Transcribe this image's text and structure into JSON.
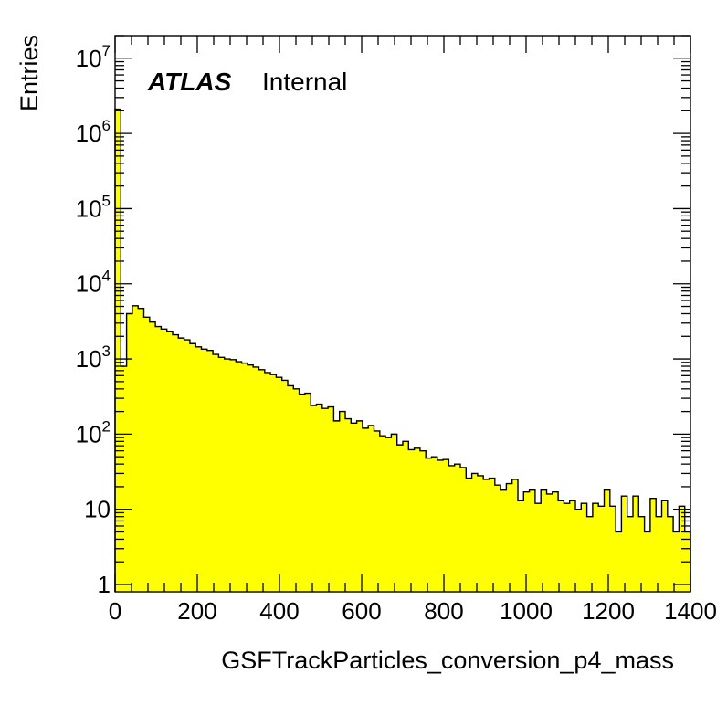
{
  "chart_data": {
    "type": "histogram",
    "xlabel": "GSFTrackParticles_conversion_p4_mass",
    "ylabel": "Entries",
    "label_bold": "ATLAS",
    "label_normal": "Internal",
    "xlim": [
      0,
      1400
    ],
    "ylim": [
      0.8,
      20000000
    ],
    "yscale": "log",
    "grid": false,
    "fill_color": "#ffff00",
    "line_color": "#000000",
    "x_ticks": [
      {
        "value": 0,
        "label": "0"
      },
      {
        "value": 200,
        "label": "200"
      },
      {
        "value": 400,
        "label": "400"
      },
      {
        "value": 600,
        "label": "600"
      },
      {
        "value": 800,
        "label": "800"
      },
      {
        "value": 1000,
        "label": "1000"
      },
      {
        "value": 1200,
        "label": "1200"
      },
      {
        "value": 1400,
        "label": "1400"
      }
    ],
    "y_ticks": [
      {
        "value": 1,
        "label": "1"
      },
      {
        "value": 10,
        "label": "10"
      },
      {
        "value": 100,
        "base": "10",
        "exp": "2"
      },
      {
        "value": 1000,
        "base": "10",
        "exp": "3"
      },
      {
        "value": 10000,
        "base": "10",
        "exp": "4"
      },
      {
        "value": 100000,
        "base": "10",
        "exp": "5"
      },
      {
        "value": 1000000,
        "base": "10",
        "exp": "6"
      },
      {
        "value": 10000000,
        "base": "10",
        "exp": "7"
      }
    ],
    "bin_width": 14,
    "bin_start": 0,
    "values": [
      2100000,
      800,
      4000,
      5100,
      4700,
      3600,
      3100,
      2700,
      2500,
      2300,
      2100,
      1900,
      1800,
      1600,
      1450,
      1350,
      1300,
      1150,
      1050,
      1000,
      980,
      920,
      880,
      830,
      780,
      720,
      660,
      620,
      570,
      520,
      440,
      400,
      340,
      350,
      240,
      250,
      220,
      230,
      150,
      200,
      160,
      140,
      150,
      120,
      130,
      110,
      95,
      90,
      100,
      72,
      80,
      62,
      65,
      60,
      48,
      50,
      45,
      46,
      38,
      40,
      36,
      26,
      30,
      28,
      25,
      26,
      21,
      18,
      22,
      25,
      13,
      17,
      18,
      12,
      18,
      16,
      17,
      13,
      12,
      13,
      10,
      12,
      8,
      12,
      11,
      18,
      11,
      5,
      15,
      8,
      15,
      8,
      5,
      14,
      8,
      13,
      8,
      5,
      11,
      5
    ]
  }
}
